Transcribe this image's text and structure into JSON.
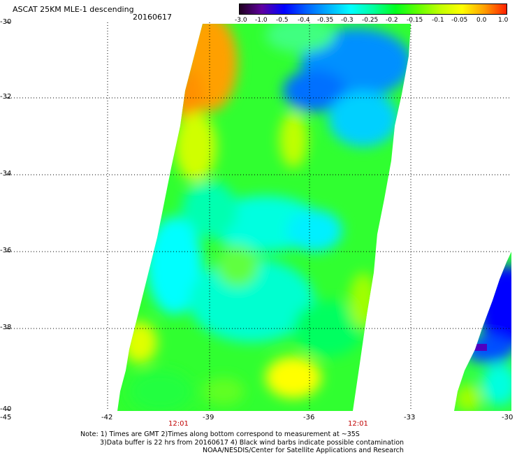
{
  "header": {
    "title": "ASCAT 25KM MLE-1 descending",
    "date": "20160617"
  },
  "colorbar": {
    "labels": [
      "-3.0",
      "-1.0",
      "-0.5",
      "-0.4",
      "-0.35",
      "-0.3",
      "-0.25",
      "-0.2",
      "-0.15",
      "-0.1",
      "-0.05",
      "0.0",
      "1.0"
    ],
    "colors": [
      "#200020",
      "#6000a0",
      "#0000ff",
      "#0060ff",
      "#00b0ff",
      "#00ffff",
      "#00ffa0",
      "#00ff20",
      "#60ff00",
      "#c0ff00",
      "#ffff00",
      "#ffa000",
      "#ff2000"
    ]
  },
  "axes": {
    "y_ticks": [
      "-30",
      "-32",
      "-34",
      "-36",
      "-38",
      "-40"
    ],
    "x_ticks": [
      "-45",
      "-42",
      "-39",
      "-36",
      "-33",
      "-30"
    ],
    "time_labels": [
      "12:01",
      "12:01"
    ]
  },
  "notes": {
    "line1": "Note: 1) Times are GMT 2)Times along bottom correspond to measurement at ~35S",
    "line2": "3)Data buffer is 22 hrs from 20160617 4) Black wind barbs indicate possible contamination",
    "line3": "NOAA/NESDIS/Center for Satellite Applications and Research"
  }
}
